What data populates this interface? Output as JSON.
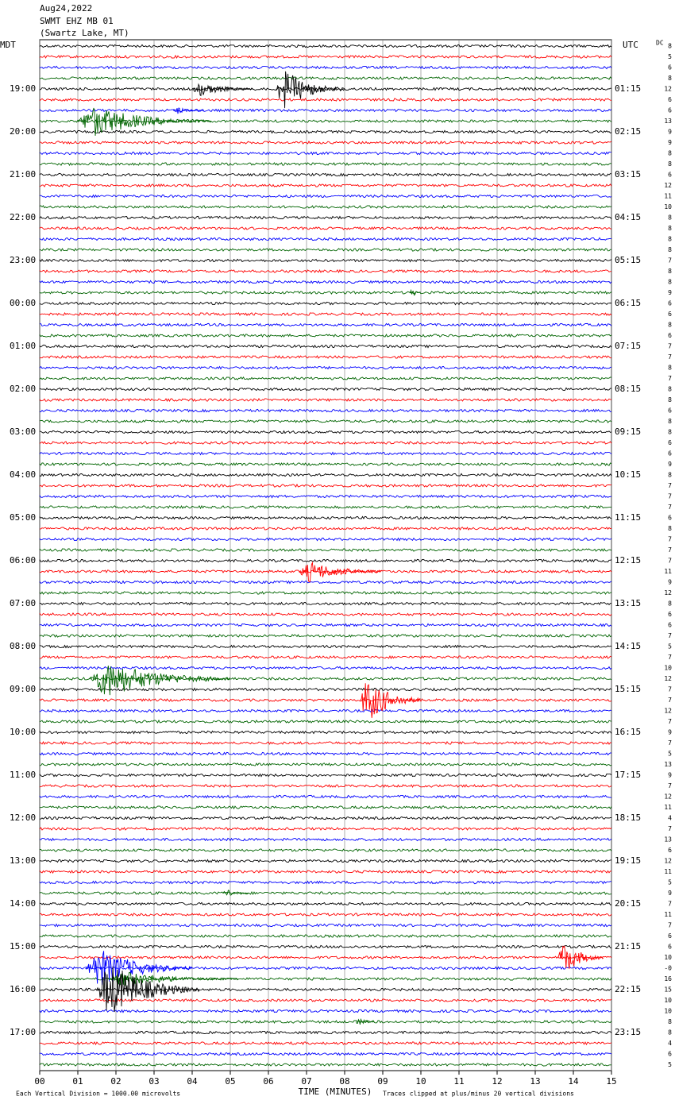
{
  "header": {
    "date": "Aug24,2022",
    "station": "SWMT EHZ MB 01",
    "location": "(Swartz Lake, MT)"
  },
  "chart_data": {
    "type": "helicorder",
    "left_timezone": "MDT",
    "right_timezone": "UTC",
    "dc_label": "DC",
    "left_labels": [
      "19:00",
      "20:00",
      "21:00",
      "22:00",
      "23:00",
      "00:00",
      "01:00",
      "02:00",
      "03:00",
      "04:00",
      "05:00",
      "06:00",
      "07:00",
      "08:00",
      "09:00",
      "10:00",
      "11:00",
      "12:00",
      "13:00",
      "14:00",
      "15:00",
      "16:00",
      "17:00"
    ],
    "right_labels": [
      "01:15",
      "02:15",
      "03:15",
      "04:15",
      "05:15",
      "06:15",
      "07:15",
      "08:15",
      "09:15",
      "10:15",
      "11:15",
      "12:15",
      "13:15",
      "14:15",
      "15:15",
      "16:15",
      "17:15",
      "18:15",
      "19:15",
      "20:15",
      "21:15",
      "22:15",
      "23:15"
    ],
    "trace_colors": [
      "#000000",
      "#ff0000",
      "#0000ff",
      "#006400"
    ],
    "dc_values": [
      "8",
      "5",
      "6",
      "8",
      "12",
      "6",
      "6",
      "13",
      "9",
      "9",
      "8",
      "8",
      "6",
      "12",
      "11",
      "10",
      "8",
      "8",
      "8",
      "8",
      "7",
      "8",
      "8",
      "9",
      "6",
      "6",
      "8",
      "6",
      "7",
      "7",
      "8",
      "7",
      "8",
      "8",
      "6",
      "8",
      "8",
      "6",
      "6",
      "9",
      "8",
      "7",
      "7",
      "7",
      "6",
      "8",
      "7",
      "7",
      "7",
      "11",
      "9",
      "12",
      "8",
      "6",
      "6",
      "7",
      "5",
      "7",
      "10",
      "12",
      "7",
      "7",
      "12",
      "7",
      "9",
      "7",
      "5",
      "13",
      "9",
      "7",
      "12",
      "11",
      "4",
      "7",
      "13",
      "6",
      "12",
      "11",
      "5",
      "9",
      "7",
      "11",
      "7",
      "6",
      "6",
      "10",
      "-0",
      "16",
      "15",
      "10",
      "10",
      "8",
      "8",
      "4",
      "6",
      "5"
    ],
    "xlim": [
      0,
      15
    ],
    "xticks": [
      {
        "value": 0,
        "label": "00"
      },
      {
        "value": 1,
        "label": "01"
      },
      {
        "value": 2,
        "label": "02"
      },
      {
        "value": 3,
        "label": "03"
      },
      {
        "value": 4,
        "label": "04"
      },
      {
        "value": 5,
        "label": "05"
      },
      {
        "value": 6,
        "label": "06"
      },
      {
        "value": 7,
        "label": "07"
      },
      {
        "value": 8,
        "label": "08"
      },
      {
        "value": 9,
        "label": "09"
      },
      {
        "value": 10,
        "label": "10"
      },
      {
        "value": 11,
        "label": "11"
      },
      {
        "value": 12,
        "label": "12"
      },
      {
        "value": 13,
        "label": "13"
      },
      {
        "value": 14,
        "label": "14"
      },
      {
        "value": 15,
        "label": "15"
      }
    ],
    "xlabel": "TIME (MINUTES)",
    "footer_left": "Each Vertical Division = 1000.00 microvolts",
    "footer_right": "Traces clipped at plus/minus 20 vertical divisions",
    "events": [
      {
        "trace": 4,
        "start": 4.0,
        "end": 5.6,
        "amplitude": 10
      },
      {
        "trace": 4,
        "start": 6.2,
        "end": 8.0,
        "amplitude": 26
      },
      {
        "trace": 6,
        "start": 3.5,
        "end": 4.3,
        "amplitude": 5
      },
      {
        "trace": 7,
        "start": 1.0,
        "end": 4.5,
        "amplitude": 20
      },
      {
        "trace": 23,
        "start": 9.7,
        "end": 10.0,
        "amplitude": 8
      },
      {
        "trace": 49,
        "start": 6.8,
        "end": 9.0,
        "amplitude": 14
      },
      {
        "trace": 59,
        "start": 1.3,
        "end": 5.0,
        "amplitude": 24
      },
      {
        "trace": 61,
        "start": 8.4,
        "end": 10.0,
        "amplitude": 30
      },
      {
        "trace": 79,
        "start": 4.8,
        "end": 5.5,
        "amplitude": 5
      },
      {
        "trace": 85,
        "start": 13.6,
        "end": 14.8,
        "amplitude": 22
      },
      {
        "trace": 86,
        "start": 1.2,
        "end": 4.0,
        "amplitude": 26
      },
      {
        "trace": 87,
        "start": 1.8,
        "end": 5.2,
        "amplitude": 10
      },
      {
        "trace": 88,
        "start": 1.5,
        "end": 4.2,
        "amplitude": 36
      },
      {
        "trace": 91,
        "start": 8.3,
        "end": 8.8,
        "amplitude": 5
      }
    ]
  }
}
